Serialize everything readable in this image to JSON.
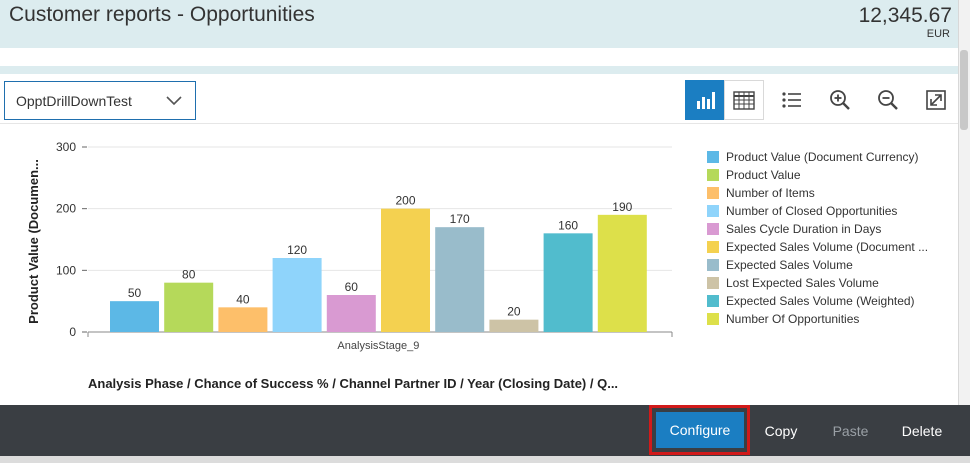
{
  "header": {
    "title": "Customer reports - Opportunities",
    "amount": "12,345.67",
    "currency": "EUR"
  },
  "toolbar": {
    "dropdown_value": "OpptDrillDownTest",
    "icons": [
      "bar-chart-icon",
      "table-icon",
      "list-icon",
      "zoom-in-icon",
      "zoom-out-icon",
      "fullscreen-icon"
    ]
  },
  "chart_data": {
    "type": "bar",
    "categories": [
      "AnalysisStage_9"
    ],
    "ylabel": "Product Value (Documen...",
    "xlabel": "Analysis Phase / Chance of Success % / Channel Partner ID / Year (Closing Date) / Q...",
    "ylim": [
      0,
      300
    ],
    "yticks": [
      "0",
      "100",
      "200",
      "300"
    ],
    "legend_position": "right",
    "grid": true,
    "series": [
      {
        "name": "Product Value (Document Currency)",
        "values": [
          50
        ],
        "label": "50",
        "color": "#5cb8e6"
      },
      {
        "name": "Product Value",
        "values": [
          80
        ],
        "label": "80",
        "color": "#b5d95a"
      },
      {
        "name": "Number of Items",
        "values": [
          40
        ],
        "label": "40",
        "color": "#fdbf6a"
      },
      {
        "name": "Number of Closed Opportunities",
        "values": [
          120
        ],
        "label": "120",
        "color": "#8fd4fb"
      },
      {
        "name": "Sales Cycle Duration in Days",
        "values": [
          60
        ],
        "label": "60",
        "color": "#d99ad2"
      },
      {
        "name": "Expected Sales Volume (Document ...",
        "values": [
          200
        ],
        "label": "200",
        "color": "#f4d150"
      },
      {
        "name": "Expected Sales Volume",
        "values": [
          170
        ],
        "label": "170",
        "color": "#99bccb"
      },
      {
        "name": "Lost Expected Sales Volume",
        "values": [
          20
        ],
        "label": "20",
        "color": "#cdc3a6"
      },
      {
        "name": "Expected Sales Volume (Weighted)",
        "values": [
          160
        ],
        "label": "160",
        "color": "#51bccd"
      },
      {
        "name": "Number Of Opportunities",
        "values": [
          190
        ],
        "label": "190",
        "color": "#dde04a"
      }
    ]
  },
  "footer": {
    "configure": "Configure",
    "copy": "Copy",
    "paste": "Paste",
    "delete": "Delete"
  }
}
